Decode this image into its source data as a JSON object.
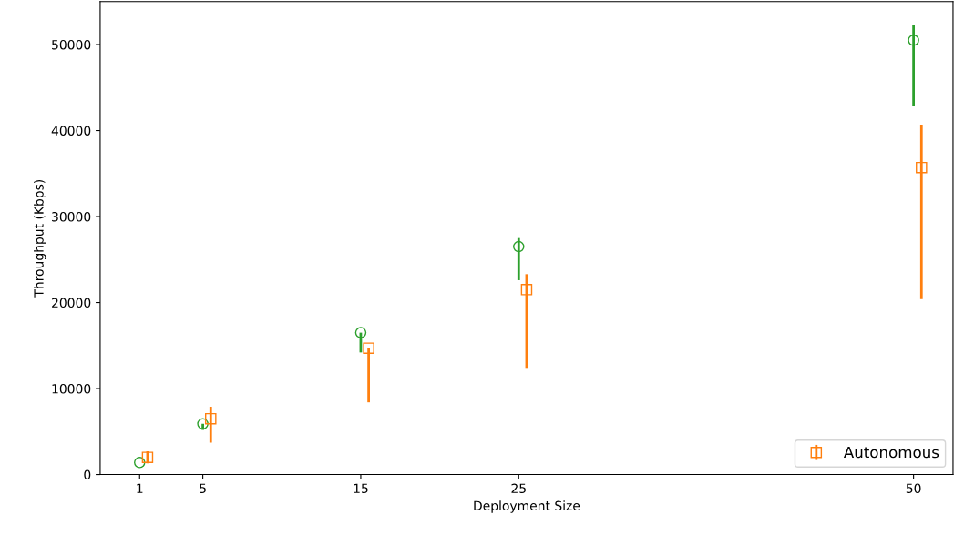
{
  "chart_data": {
    "type": "scatter",
    "xlabel": "Deployment Size",
    "ylabel": "Throughput (Kbps)",
    "xlim": [
      -1.5,
      52.5
    ],
    "ylim": [
      0,
      55000
    ],
    "xticks": [
      1,
      5,
      15,
      25,
      50
    ],
    "yticks": [
      0,
      10000,
      20000,
      30000,
      40000,
      50000
    ],
    "grid": false,
    "legend": "bottom right",
    "series": [
      {
        "color": "#2ca02c",
        "marker": "circle",
        "x": [
          1,
          5,
          15,
          25,
          50
        ],
        "values": [
          1400,
          5900,
          16500,
          26500,
          50500
        ],
        "errors": [
          null,
          [
            5200,
            5900
          ],
          [
            14200,
            16500
          ],
          [
            22600,
            27500
          ],
          [
            42800,
            52300
          ]
        ]
      },
      {
        "name": "Autonomous",
        "color": "#ff7f0e",
        "marker": "square",
        "x": [
          1.5,
          5.5,
          15.5,
          25.5,
          50.5
        ],
        "values": [
          2000,
          6500,
          14700,
          21500,
          35700
        ],
        "errors": [
          [
            1300,
            2700
          ],
          [
            3700,
            7900
          ],
          [
            8400,
            14700
          ],
          [
            12300,
            23300
          ],
          [
            20400,
            40700
          ]
        ]
      }
    ]
  }
}
